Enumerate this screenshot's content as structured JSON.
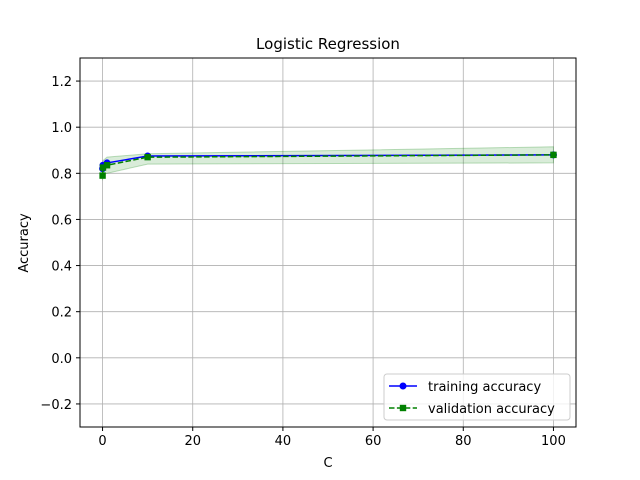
{
  "chart_data": {
    "type": "line",
    "title": "Logistic Regression",
    "xlabel": "C",
    "ylabel": "Accuracy",
    "xlim": [
      -5,
      105
    ],
    "ylim": [
      -0.3,
      1.3
    ],
    "xticks": [
      0,
      20,
      40,
      60,
      80,
      100
    ],
    "yticks": [
      -0.2,
      0.0,
      0.2,
      0.4,
      0.6,
      0.8,
      1.0,
      1.2
    ],
    "xtick_labels": [
      "0",
      "20",
      "40",
      "60",
      "80",
      "100"
    ],
    "ytick_labels": [
      "−0.2",
      "0.0",
      "0.2",
      "0.4",
      "0.6",
      "0.8",
      "1.0",
      "1.2"
    ],
    "grid": true,
    "legend_position": "lower-right",
    "series": [
      {
        "name": "training accuracy",
        "color": "#0000ff",
        "marker": "circle",
        "linestyle": "solid",
        "x": [
          0.01,
          0.1,
          1,
          10,
          100
        ],
        "y": [
          0.82,
          0.835,
          0.845,
          0.875,
          0.88
        ],
        "band": null
      },
      {
        "name": "validation accuracy",
        "color": "#008000",
        "marker": "square",
        "linestyle": "dashed",
        "x": [
          0.01,
          0.1,
          1,
          10,
          100
        ],
        "y": [
          0.79,
          0.825,
          0.835,
          0.87,
          0.88
        ],
        "band": {
          "color": "#008000",
          "opacity": 0.15,
          "lower": [
            0.77,
            0.795,
            0.8,
            0.84,
            0.845
          ],
          "upper": [
            0.81,
            0.855,
            0.87,
            0.885,
            0.915
          ]
        }
      }
    ]
  }
}
